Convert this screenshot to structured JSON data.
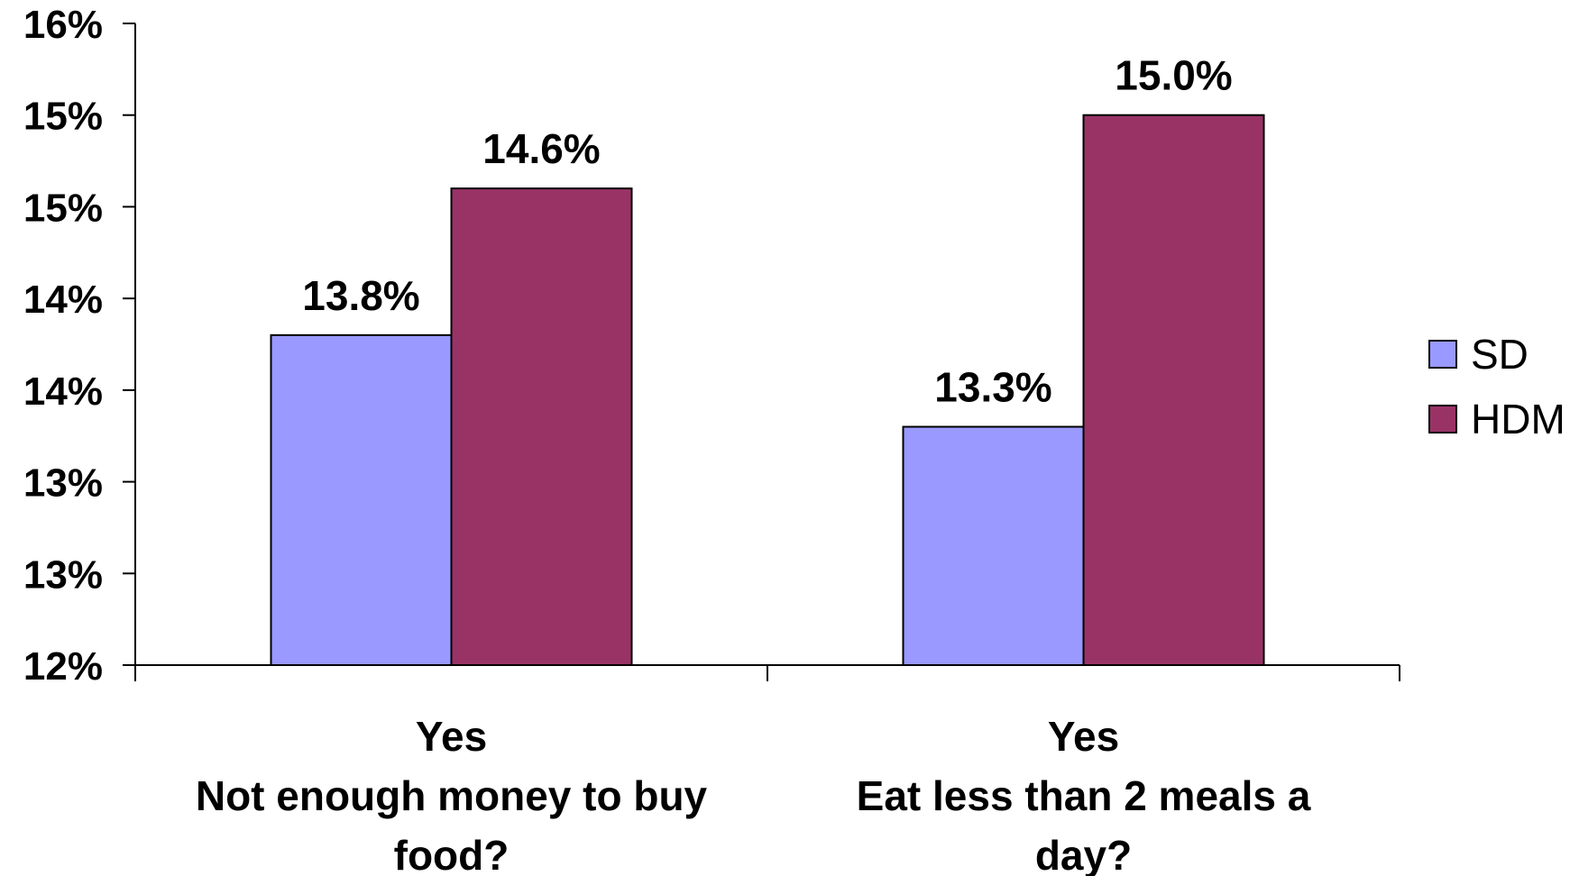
{
  "chart_data": {
    "type": "bar",
    "categories": [
      [
        "Yes",
        "Not enough money to buy",
        "food?"
      ],
      [
        "Yes",
        "Eat less than 2 meals a",
        "day?"
      ]
    ],
    "series": [
      {
        "name": "SD",
        "color": "#9999FF",
        "values": [
          13.8,
          13.3
        ],
        "labels": [
          "13.8%",
          "13.3%"
        ]
      },
      {
        "name": "HDM",
        "color": "#993366",
        "values": [
          14.6,
          15.0
        ],
        "labels": [
          "14.6%",
          "15.0%"
        ]
      }
    ],
    "ylim": [
      12,
      15.5
    ],
    "y_ticks": [
      12,
      12.5,
      13,
      13.5,
      14,
      14.5,
      15,
      15.5
    ],
    "y_tick_labels": [
      "12%",
      "13%",
      "13%",
      "14%",
      "14%",
      "15%",
      "15%",
      "16%"
    ],
    "legend_position": "right",
    "grid": false,
    "title": "",
    "xlabel": "",
    "ylabel": ""
  }
}
